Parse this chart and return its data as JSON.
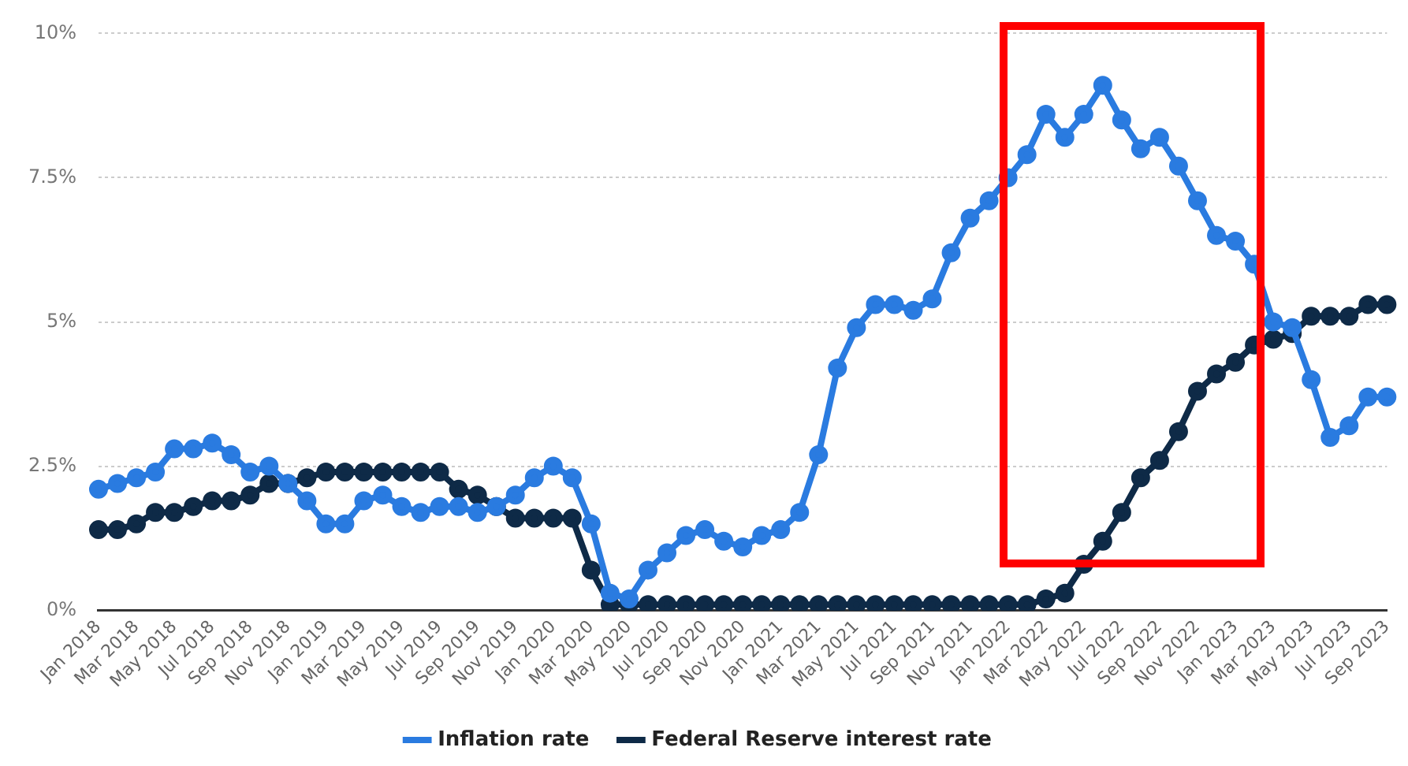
{
  "chart_data": {
    "type": "line",
    "categories": [
      "Jan 2018",
      null,
      "Mar 2018",
      null,
      "May 2018",
      null,
      "Jul 2018",
      null,
      "Sep 2018",
      null,
      "Nov 2018",
      null,
      "Jan 2019",
      null,
      "Mar 2019",
      null,
      "May 2019",
      null,
      "Jul 2019",
      null,
      "Sep 2019",
      null,
      "Nov 2019",
      null,
      "Jan 2020",
      null,
      "Mar 2020",
      null,
      "May 2020",
      null,
      "Jul 2020",
      null,
      "Sep 2020",
      null,
      "Nov 2020",
      null,
      "Jan 2021",
      null,
      "Mar 2021",
      null,
      "May 2021",
      null,
      "Jul 2021",
      null,
      "Sep 2021",
      null,
      "Nov 2021",
      null,
      "Jan 2022",
      null,
      "Mar 2022",
      null,
      "May 2022",
      null,
      "Jul 2022",
      null,
      "Sep 2022",
      null,
      "Nov 2022",
      null,
      "Jan 2023",
      null,
      "Mar 2023",
      null,
      "May 2023",
      null,
      "Jul 2023",
      null,
      "Sep 2023"
    ],
    "series": [
      {
        "name": "Inflation rate",
        "color": "#2a7be0",
        "values": [
          2.1,
          2.2,
          2.3,
          2.4,
          2.8,
          2.8,
          2.9,
          2.7,
          2.4,
          2.5,
          2.2,
          1.9,
          1.5,
          1.5,
          1.9,
          2.0,
          1.8,
          1.7,
          1.8,
          1.8,
          1.7,
          1.8,
          2.0,
          2.3,
          2.5,
          2.3,
          1.5,
          0.3,
          0.2,
          0.7,
          1.0,
          1.3,
          1.4,
          1.2,
          1.1,
          1.3,
          1.4,
          1.7,
          2.7,
          4.2,
          4.9,
          5.3,
          5.3,
          5.2,
          5.4,
          6.2,
          6.8,
          7.1,
          7.5,
          7.9,
          8.6,
          8.2,
          8.6,
          9.1,
          8.5,
          8.0,
          8.2,
          7.7,
          7.1,
          6.5,
          6.4,
          6.0,
          5.0,
          4.9,
          4.0,
          3.0,
          3.2,
          3.7,
          3.7
        ]
      },
      {
        "name": "Federal Reserve interest rate",
        "color": "#0e2a47",
        "values": [
          1.4,
          1.4,
          1.5,
          1.7,
          1.7,
          1.8,
          1.9,
          1.9,
          2.0,
          2.2,
          2.2,
          2.3,
          2.4,
          2.4,
          2.4,
          2.4,
          2.4,
          2.4,
          2.4,
          2.1,
          2.0,
          1.8,
          1.6,
          1.6,
          1.6,
          1.6,
          0.7,
          0.1,
          0.1,
          0.1,
          0.1,
          0.1,
          0.1,
          0.1,
          0.1,
          0.1,
          0.1,
          0.1,
          0.1,
          0.1,
          0.1,
          0.1,
          0.1,
          0.1,
          0.1,
          0.1,
          0.1,
          0.1,
          0.1,
          0.1,
          0.2,
          0.3,
          0.8,
          1.2,
          1.7,
          2.3,
          2.6,
          3.1,
          3.8,
          4.1,
          4.3,
          4.6,
          4.7,
          4.8,
          5.1,
          5.1,
          5.1,
          5.3,
          5.3
        ]
      }
    ],
    "ylim": [
      0,
      10
    ],
    "yticks": [
      {
        "value": 0,
        "label": "0%"
      },
      {
        "value": 2.5,
        "label": "2.5%"
      },
      {
        "value": 5,
        "label": "5%"
      },
      {
        "value": 7.5,
        "label": "7.5%"
      },
      {
        "value": 10,
        "label": "10%"
      }
    ],
    "grid": "y",
    "legend": "bottom",
    "marker": "circle",
    "line_style": "solid"
  }
}
